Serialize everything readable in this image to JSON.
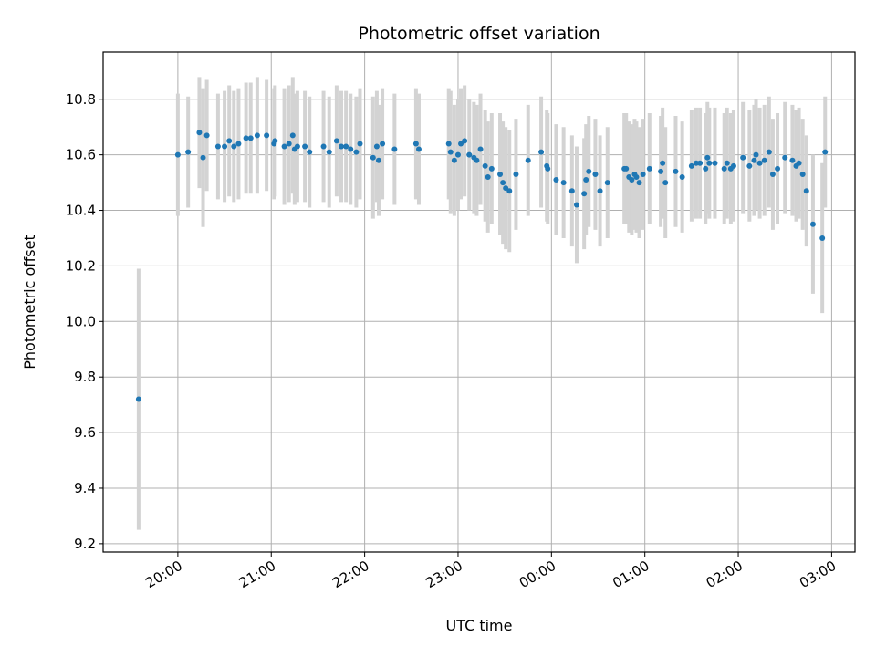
{
  "chart_data": {
    "type": "scatter",
    "title": "Photometric offset variation",
    "xlabel": "UTC time",
    "ylabel": "Photometric offset",
    "x_ticks": [
      "20:00",
      "21:00",
      "22:00",
      "23:00",
      "00:00",
      "01:00",
      "02:00",
      "03:00"
    ],
    "y_ticks": [
      "9.2",
      "9.4",
      "9.6",
      "9.8",
      "10.0",
      "10.2",
      "10.4",
      "10.6",
      "10.8"
    ],
    "xlim_hours": [
      -0.8,
      7.25
    ],
    "ylim": [
      9.17,
      10.97
    ],
    "grid": true,
    "colors": {
      "point": "#1f77b4",
      "errorbar": "#d3d3d3",
      "grid": "#b0b0b0"
    },
    "series": [
      {
        "x": [
          -0.42,
          0.0,
          0.11,
          0.23,
          0.27,
          0.31,
          0.43,
          0.5,
          0.55,
          0.6,
          0.65,
          0.73,
          0.78,
          0.85,
          0.95,
          1.03,
          1.04,
          1.14,
          1.19,
          1.23,
          1.25,
          1.28,
          1.36,
          1.41,
          1.56,
          1.62,
          1.7,
          1.75,
          1.8,
          1.85,
          1.91,
          1.95,
          2.09,
          2.13,
          2.15,
          2.19,
          2.32,
          2.55,
          2.58,
          2.9,
          2.92,
          2.96,
          3.0,
          3.03,
          3.07,
          3.12,
          3.17,
          3.2,
          3.24,
          3.29,
          3.32,
          3.36,
          3.45,
          3.48,
          3.51,
          3.55,
          3.62,
          3.75,
          3.89,
          3.95,
          3.96,
          4.05,
          4.13,
          4.22,
          4.27,
          4.35,
          4.37,
          4.4,
          4.47,
          4.52,
          4.6,
          4.78,
          4.8,
          4.83,
          4.86,
          4.89,
          4.91,
          4.94,
          4.98,
          5.05,
          5.17,
          5.19,
          5.22,
          5.33,
          5.4,
          5.5,
          5.55,
          5.59,
          5.65,
          5.67,
          5.69,
          5.75,
          5.85,
          5.88,
          5.92,
          5.95,
          6.05,
          6.12,
          6.17,
          6.19,
          6.23,
          6.28,
          6.33,
          6.37,
          6.42,
          6.5,
          6.58,
          6.62,
          6.65,
          6.69,
          6.73,
          6.8,
          6.9,
          6.93
        ],
        "y": [
          9.72,
          10.6,
          10.61,
          10.68,
          10.59,
          10.67,
          10.63,
          10.63,
          10.65,
          10.63,
          10.64,
          10.66,
          10.66,
          10.67,
          10.67,
          10.64,
          10.65,
          10.63,
          10.64,
          10.67,
          10.62,
          10.63,
          10.63,
          10.61,
          10.63,
          10.61,
          10.65,
          10.63,
          10.63,
          10.62,
          10.61,
          10.64,
          10.59,
          10.63,
          10.58,
          10.64,
          10.62,
          10.64,
          10.62,
          10.64,
          10.61,
          10.58,
          10.6,
          10.64,
          10.65,
          10.6,
          10.59,
          10.58,
          10.62,
          10.56,
          10.52,
          10.55,
          10.53,
          10.5,
          10.48,
          10.47,
          10.53,
          10.58,
          10.61,
          10.56,
          10.55,
          10.51,
          10.5,
          10.47,
          10.42,
          10.46,
          10.51,
          10.54,
          10.53,
          10.47,
          10.5,
          10.55,
          10.55,
          10.52,
          10.51,
          10.53,
          10.52,
          10.5,
          10.53,
          10.55,
          10.54,
          10.57,
          10.5,
          10.54,
          10.52,
          10.56,
          10.57,
          10.57,
          10.55,
          10.59,
          10.57,
          10.57,
          10.55,
          10.57,
          10.55,
          10.56,
          10.59,
          10.56,
          10.58,
          10.6,
          10.57,
          10.58,
          10.61,
          10.53,
          10.55,
          10.59,
          10.58,
          10.56,
          10.57,
          10.53,
          10.47,
          10.35,
          10.3,
          10.61
        ],
        "err": [
          0.47,
          0.22,
          0.2,
          0.2,
          0.25,
          0.2,
          0.19,
          0.2,
          0.2,
          0.2,
          0.2,
          0.2,
          0.2,
          0.21,
          0.2,
          0.2,
          0.2,
          0.21,
          0.21,
          0.21,
          0.2,
          0.2,
          0.2,
          0.2,
          0.2,
          0.2,
          0.2,
          0.2,
          0.2,
          0.2,
          0.2,
          0.2,
          0.22,
          0.2,
          0.2,
          0.2,
          0.2,
          0.2,
          0.2,
          0.2,
          0.22,
          0.2,
          0.2,
          0.2,
          0.2,
          0.2,
          0.2,
          0.2,
          0.2,
          0.2,
          0.2,
          0.2,
          0.22,
          0.22,
          0.22,
          0.22,
          0.2,
          0.2,
          0.2,
          0.2,
          0.2,
          0.2,
          0.2,
          0.2,
          0.21,
          0.2,
          0.2,
          0.2,
          0.2,
          0.2,
          0.2,
          0.2,
          0.2,
          0.2,
          0.2,
          0.2,
          0.2,
          0.2,
          0.2,
          0.2,
          0.2,
          0.2,
          0.2,
          0.2,
          0.2,
          0.2,
          0.2,
          0.2,
          0.2,
          0.2,
          0.2,
          0.2,
          0.2,
          0.2,
          0.2,
          0.2,
          0.2,
          0.2,
          0.2,
          0.2,
          0.2,
          0.2,
          0.2,
          0.2,
          0.2,
          0.2,
          0.2,
          0.2,
          0.2,
          0.2,
          0.2,
          0.25,
          0.27,
          0.2
        ]
      }
    ]
  }
}
